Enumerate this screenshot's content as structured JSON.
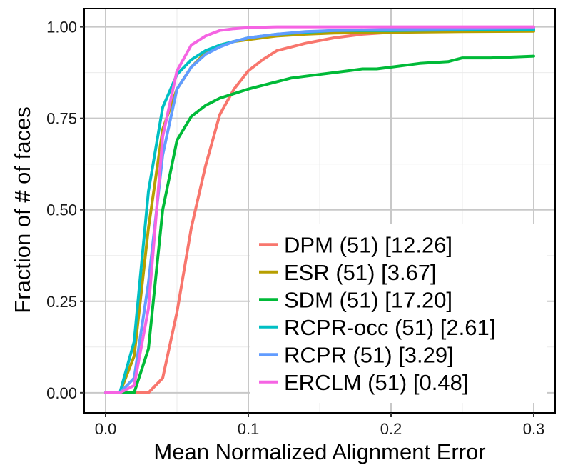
{
  "chart_data": {
    "type": "line",
    "xlabel": "Mean Normalized Alignment Error",
    "ylabel": "Fraction of # of faces",
    "xlim": [
      -0.015,
      0.315
    ],
    "ylim": [
      -0.055,
      1.05
    ],
    "xticks": [
      0.0,
      0.1,
      0.2,
      0.3
    ],
    "xtick_labels": [
      "0.0",
      "0.1",
      "0.2",
      "0.3"
    ],
    "yticks": [
      0.0,
      0.25,
      0.5,
      0.75,
      1.0
    ],
    "ytick_labels": [
      "0.00",
      "0.25",
      "0.50",
      "0.75",
      "1.00"
    ],
    "grid": true,
    "legend_position": "bottom-right",
    "series": [
      {
        "name": "DPM (51) [12.26]",
        "color": "#F8766D",
        "points": [
          [
            0.0,
            0.0
          ],
          [
            0.01,
            0.0
          ],
          [
            0.02,
            0.0
          ],
          [
            0.03,
            0.0
          ],
          [
            0.04,
            0.04
          ],
          [
            0.05,
            0.22
          ],
          [
            0.06,
            0.45
          ],
          [
            0.07,
            0.62
          ],
          [
            0.08,
            0.76
          ],
          [
            0.09,
            0.83
          ],
          [
            0.1,
            0.88
          ],
          [
            0.11,
            0.91
          ],
          [
            0.12,
            0.935
          ],
          [
            0.13,
            0.945
          ],
          [
            0.14,
            0.955
          ],
          [
            0.16,
            0.97
          ],
          [
            0.18,
            0.98
          ],
          [
            0.2,
            0.985
          ],
          [
            0.25,
            0.99
          ],
          [
            0.3,
            0.99
          ]
        ]
      },
      {
        "name": "ESR (51) [3.67]",
        "color": "#B79F00",
        "points": [
          [
            0.0,
            0.0
          ],
          [
            0.01,
            0.0
          ],
          [
            0.02,
            0.1
          ],
          [
            0.03,
            0.45
          ],
          [
            0.04,
            0.72
          ],
          [
            0.05,
            0.83
          ],
          [
            0.06,
            0.89
          ],
          [
            0.07,
            0.93
          ],
          [
            0.08,
            0.95
          ],
          [
            0.09,
            0.96
          ],
          [
            0.1,
            0.965
          ],
          [
            0.12,
            0.975
          ],
          [
            0.14,
            0.98
          ],
          [
            0.16,
            0.983
          ],
          [
            0.2,
            0.985
          ],
          [
            0.25,
            0.987
          ],
          [
            0.3,
            0.988
          ]
        ]
      },
      {
        "name": "SDM (51) [17.20]",
        "color": "#00BA38",
        "points": [
          [
            0.0,
            0.0
          ],
          [
            0.01,
            0.0
          ],
          [
            0.02,
            0.0
          ],
          [
            0.03,
            0.12
          ],
          [
            0.04,
            0.5
          ],
          [
            0.05,
            0.69
          ],
          [
            0.06,
            0.755
          ],
          [
            0.07,
            0.785
          ],
          [
            0.08,
            0.805
          ],
          [
            0.1,
            0.83
          ],
          [
            0.12,
            0.85
          ],
          [
            0.13,
            0.86
          ],
          [
            0.15,
            0.87
          ],
          [
            0.17,
            0.88
          ],
          [
            0.18,
            0.885
          ],
          [
            0.19,
            0.885
          ],
          [
            0.2,
            0.89
          ],
          [
            0.22,
            0.9
          ],
          [
            0.24,
            0.905
          ],
          [
            0.25,
            0.915
          ],
          [
            0.27,
            0.915
          ],
          [
            0.3,
            0.92
          ]
        ]
      },
      {
        "name": "RCPR-occ (51) [2.61]",
        "color": "#00BFC4",
        "points": [
          [
            0.0,
            0.0
          ],
          [
            0.01,
            0.0
          ],
          [
            0.02,
            0.14
          ],
          [
            0.03,
            0.55
          ],
          [
            0.04,
            0.78
          ],
          [
            0.05,
            0.87
          ],
          [
            0.06,
            0.91
          ],
          [
            0.07,
            0.935
          ],
          [
            0.08,
            0.95
          ],
          [
            0.09,
            0.96
          ],
          [
            0.1,
            0.97
          ],
          [
            0.12,
            0.98
          ],
          [
            0.14,
            0.985
          ],
          [
            0.16,
            0.99
          ],
          [
            0.2,
            0.99
          ],
          [
            0.25,
            0.992
          ],
          [
            0.3,
            0.992
          ]
        ]
      },
      {
        "name": "RCPR (51) [3.29]",
        "color": "#619CFF",
        "points": [
          [
            0.0,
            0.0
          ],
          [
            0.01,
            0.0
          ],
          [
            0.02,
            0.04
          ],
          [
            0.03,
            0.3
          ],
          [
            0.04,
            0.65
          ],
          [
            0.05,
            0.83
          ],
          [
            0.06,
            0.89
          ],
          [
            0.07,
            0.925
          ],
          [
            0.08,
            0.945
          ],
          [
            0.09,
            0.96
          ],
          [
            0.1,
            0.97
          ],
          [
            0.11,
            0.975
          ],
          [
            0.12,
            0.98
          ],
          [
            0.14,
            0.987
          ],
          [
            0.16,
            0.99
          ],
          [
            0.2,
            0.993
          ],
          [
            0.25,
            0.995
          ],
          [
            0.3,
            0.997
          ]
        ]
      },
      {
        "name": "ERCLM (51) [0.48]",
        "color": "#F564E3",
        "points": [
          [
            0.0,
            0.0
          ],
          [
            0.01,
            0.0
          ],
          [
            0.02,
            0.02
          ],
          [
            0.03,
            0.23
          ],
          [
            0.04,
            0.7
          ],
          [
            0.05,
            0.88
          ],
          [
            0.06,
            0.95
          ],
          [
            0.07,
            0.975
          ],
          [
            0.08,
            0.99
          ],
          [
            0.09,
            0.995
          ],
          [
            0.1,
            0.998
          ],
          [
            0.12,
            1.0
          ],
          [
            0.15,
            1.0
          ],
          [
            0.2,
            1.0
          ],
          [
            0.25,
            1.0
          ],
          [
            0.3,
            1.0
          ]
        ]
      }
    ]
  }
}
